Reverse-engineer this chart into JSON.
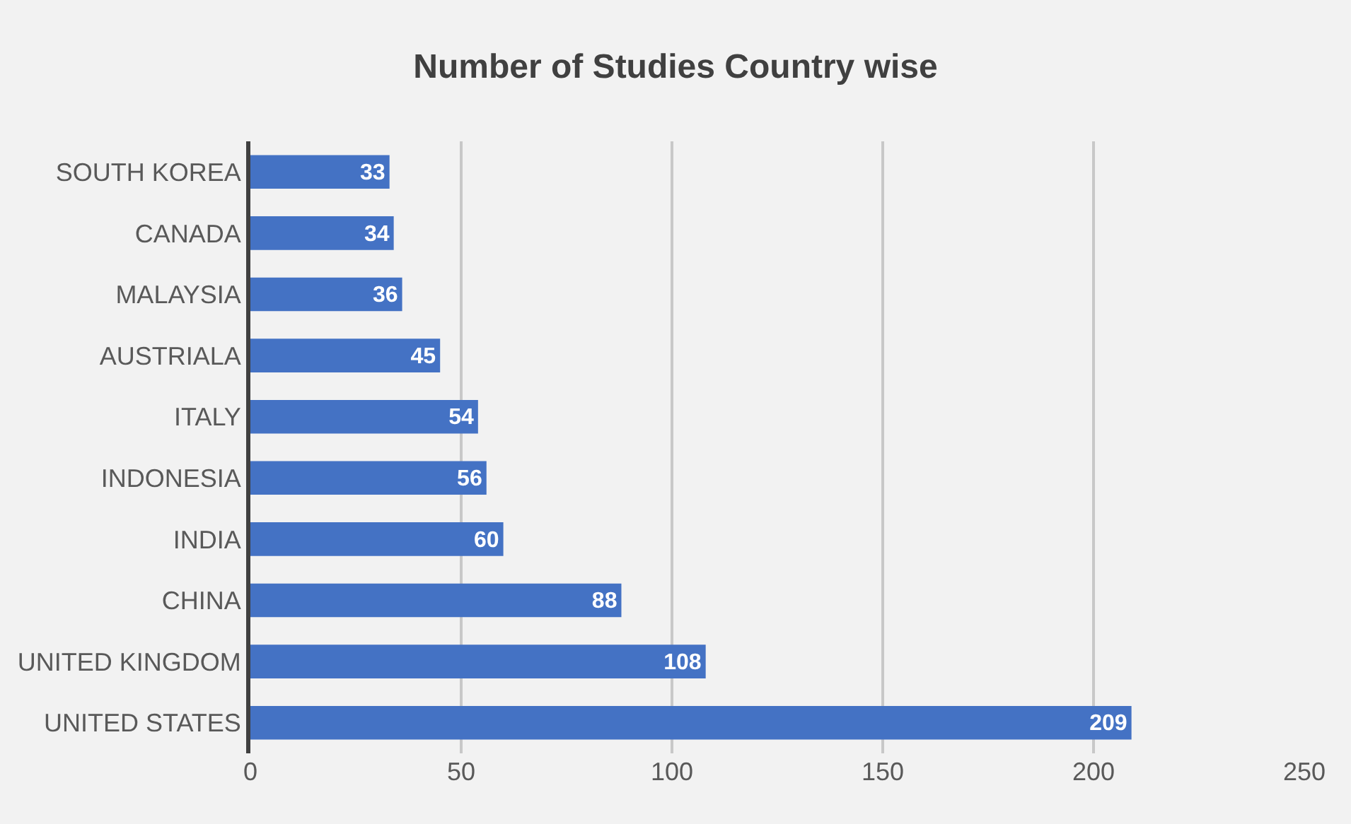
{
  "chart_data": {
    "type": "bar",
    "orientation": "horizontal",
    "title": "Number of Studies Country wise",
    "categories": [
      "SOUTH KOREA",
      "CANADA",
      "MALAYSIA",
      "AUSTRIALA",
      "ITALY",
      "INDONESIA",
      "INDIA",
      "CHINA",
      "UNITED KINGDOM",
      "UNITED STATES"
    ],
    "values": [
      33,
      34,
      36,
      45,
      54,
      56,
      60,
      88,
      108,
      209
    ],
    "color": "#4472c4",
    "xlim": [
      0,
      250
    ],
    "xticks": [
      0,
      50,
      100,
      150,
      200,
      250
    ],
    "grid": "x",
    "data_labels": true
  }
}
